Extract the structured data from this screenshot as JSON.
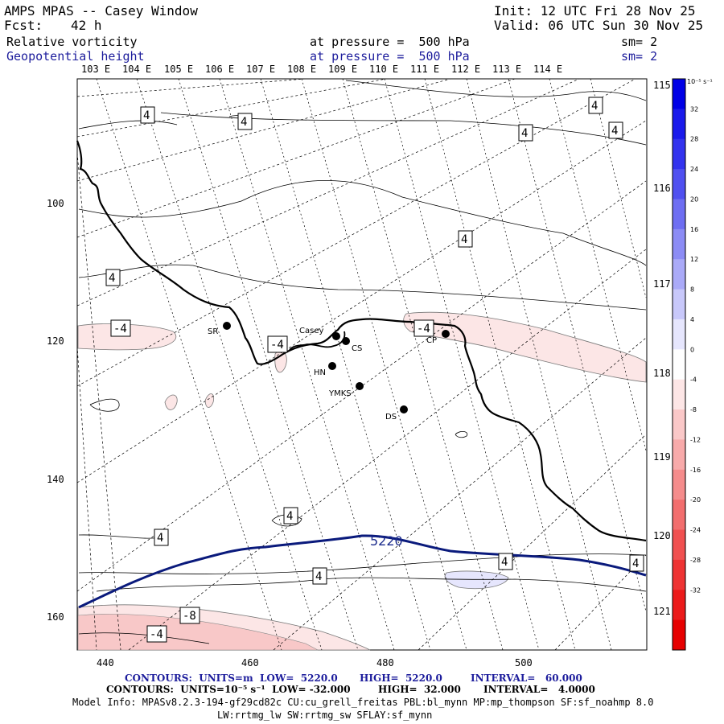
{
  "header": {
    "title": "AMPS MPAS -- Casey Window",
    "init": "Init: 12 UTC Fri 28 Nov 25",
    "fcst_label": "Fcst:",
    "fcst_value": "42 h",
    "valid": "Valid: 06 UTC Sun 30 Nov 25",
    "field1_name": "Relative vorticity",
    "field1_level": "at pressure =  500 hPa",
    "field1_sm": "sm= 2",
    "field2_name": "Geopotential height",
    "field2_level": "at pressure =  500 hPa",
    "field2_sm": "sm= 2"
  },
  "map": {
    "top_lon_labels": [
      "103 E",
      "104 E",
      "105 E",
      "106 E",
      "107 E",
      "108 E",
      "109 E",
      "110 E",
      "111 E",
      "112 E",
      "113 E",
      "114 E"
    ],
    "right_lon_labels": [
      "115 E",
      "116 E",
      "117 E",
      "118 E",
      "119 E",
      "120 E",
      "121 E"
    ],
    "x_ticks": [
      "440",
      "460",
      "480",
      "500"
    ],
    "y_ticks": [
      "100",
      "120",
      "140",
      "160"
    ],
    "stations": [
      {
        "name": "SR"
      },
      {
        "name": "Casey"
      },
      {
        "name": "CS"
      },
      {
        "name": "HN"
      },
      {
        "name": "YMKS"
      },
      {
        "name": "DS"
      },
      {
        "name": "CP"
      }
    ],
    "contour_label_5220": "5220",
    "vort_labels": [
      "4",
      "4",
      "4",
      "4",
      "4",
      "-4",
      "4",
      "-4",
      "-4",
      "4",
      "-4",
      "4",
      "4",
      "4",
      "4",
      "-8",
      "-4",
      "4"
    ]
  },
  "colorbar": {
    "unit": "10⁻⁵ s⁻¹",
    "colors": [
      "#0000e6",
      "#1a1aeb",
      "#3333ee",
      "#5050f0",
      "#6e6ef2",
      "#8c8cf5",
      "#aaaaf8",
      "#c8c8fa",
      "#e6e6fd",
      "#ffffff",
      "#fde6e6",
      "#fac8c8",
      "#f8aaaa",
      "#f58c8c",
      "#f26e6e",
      "#f05050",
      "#ee3333",
      "#eb1a1a",
      "#e60000"
    ],
    "tick_labels": [
      "32",
      "28",
      "24",
      "20",
      "16",
      "12",
      "8",
      "4",
      "0",
      "-4",
      "-8",
      "-12",
      "-16",
      "-20",
      "-24",
      "-28",
      "-32"
    ]
  },
  "footer": {
    "line1_a": "CONTOURS:  UNITS=m  LOW=  5220.0",
    "line1_b": "HIGH=  5220.0",
    "line1_c": "INTERVAL=   60.000",
    "line2_a": "CONTOURS:  UNITS=10⁻⁵ s⁻¹  LOW= -32.000",
    "line2_b": "HIGH=  32.000",
    "line2_c": "INTERVAL=   4.0000",
    "model_info": "Model Info: MPASv8.2.3-194-gf29cd82c CU:cu_grell_freitas PBL:bl_mynn MP:mp_thompson SF:sf_noahmp 8.0",
    "model_info2": "LW:rrtmg_lw SW:rrtmg_sw SFLAY:sf_mynn"
  }
}
